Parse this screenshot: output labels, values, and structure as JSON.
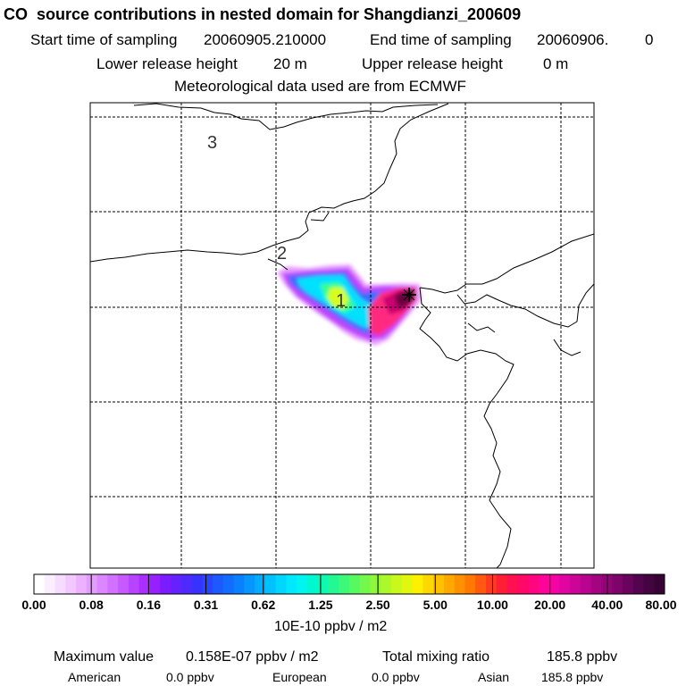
{
  "header": {
    "title": "CO  source contributions in nested domain for Shangdianzi_200609",
    "start_label": "Start time of sampling",
    "start_value": "20060905.210000",
    "end_label": "End time of sampling",
    "end_value": "20060906.",
    "end_suffix": "0",
    "lower_label": "Lower release height",
    "lower_value": "20 m",
    "upper_label": "Upper release height",
    "upper_value": "0 m",
    "met_text": "Meteorological data used are from ECMWF"
  },
  "map": {
    "region_labels": [
      "3",
      "2",
      "1"
    ],
    "plume_colors": [
      "#e8a0ff",
      "#c040ff",
      "#3a6cff",
      "#00e0ff",
      "#39ff8a",
      "#d8ff1a",
      "#ff2a80",
      "#cc0070",
      "#6a0040"
    ]
  },
  "colorbar": {
    "ticks": [
      "0.00",
      "0.08",
      "0.16",
      "0.31",
      "0.62",
      "1.25",
      "2.50",
      "5.00",
      "10.00",
      "20.00",
      "40.00",
      "80.00"
    ],
    "colors": [
      "#ffffff",
      "#fbeeff",
      "#f6dcff",
      "#f1c8ff",
      "#ecb2ff",
      "#e49cff",
      "#dc86ff",
      "#d270ff",
      "#c65aff",
      "#b844ff",
      "#aa2eff",
      "#9620ff",
      "#7a1cff",
      "#6422ff",
      "#4e2aff",
      "#3832ff",
      "#2a44ff",
      "#1e58ff",
      "#126cff",
      "#0a80ff",
      "#0696ff",
      "#02acff",
      "#00c2ff",
      "#00d6ff",
      "#00e8ff",
      "#00f4f0",
      "#00f8d0",
      "#10f8b0",
      "#24f892",
      "#3ef878",
      "#58f860",
      "#74f84c",
      "#90f83a",
      "#acf82a",
      "#c8f81c",
      "#e0f810",
      "#fff000",
      "#ffd800",
      "#ffc000",
      "#ffa800",
      "#ff9000",
      "#ff7800",
      "#ff5a10",
      "#ff3a20",
      "#ff1e34",
      "#ff1050",
      "#ff0868",
      "#ff0680",
      "#ff0498",
      "#f404a4",
      "#e004a0",
      "#cc0498",
      "#b8048e",
      "#a40482",
      "#900476",
      "#7c046a",
      "#68045c",
      "#54044e",
      "#440440",
      "#360434"
    ],
    "units": "10E-10 ppbv / m2"
  },
  "footer": {
    "max_label": "Maximum value",
    "max_value": "0.158E-07 ppbv / m2",
    "total_label": "Total mixing ratio",
    "total_value": "185.8 ppbv",
    "american_label": "American",
    "american_value": "0.0 ppbv",
    "european_label": "European",
    "european_value": "0.0 ppbv",
    "asian_label": "Asian",
    "asian_value": "185.8 ppbv"
  }
}
